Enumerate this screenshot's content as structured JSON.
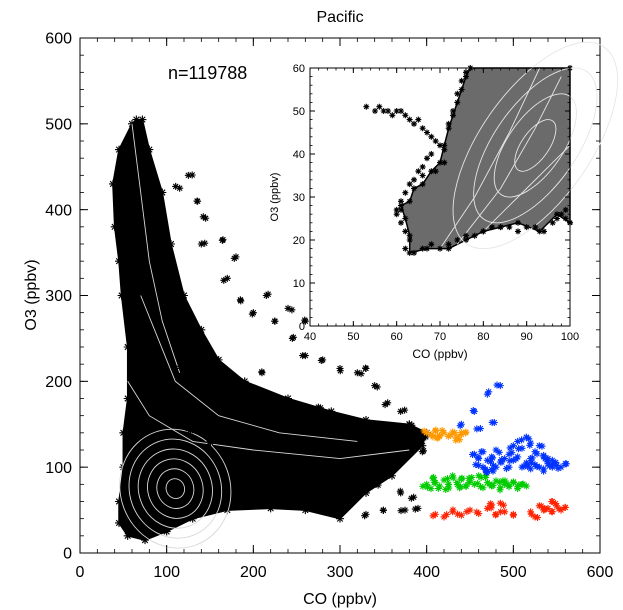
{
  "chart_data": [
    {
      "type": "scatter",
      "title": "Pacific",
      "xlabel": "CO (ppbv)",
      "ylabel": "O3 (ppbv)",
      "xlim": [
        0,
        600
      ],
      "ylim": [
        0,
        600
      ],
      "xticks": [
        0,
        100,
        200,
        300,
        400,
        500,
        600
      ],
      "yticks": [
        0,
        100,
        200,
        300,
        400,
        500,
        600
      ],
      "annotation": "n=119788",
      "grid": false,
      "legend": "none",
      "overlay": "white contour lines of point density",
      "dense_region": [
        [
          65,
          505
        ],
        [
          60,
          500
        ],
        [
          45,
          470
        ],
        [
          38,
          430
        ],
        [
          40,
          380
        ],
        [
          45,
          340
        ],
        [
          48,
          300
        ],
        [
          55,
          240
        ],
        [
          55,
          180
        ],
        [
          50,
          140
        ],
        [
          50,
          100
        ],
        [
          45,
          60
        ],
        [
          45,
          35
        ],
        [
          55,
          20
        ],
        [
          75,
          15
        ],
        [
          100,
          25
        ],
        [
          130,
          40
        ],
        [
          170,
          50
        ],
        [
          220,
          52
        ],
        [
          260,
          50
        ],
        [
          300,
          40
        ],
        [
          330,
          70
        ],
        [
          360,
          90
        ],
        [
          395,
          125
        ],
        [
          400,
          140
        ],
        [
          380,
          150
        ],
        [
          330,
          155
        ],
        [
          290,
          165
        ],
        [
          240,
          180
        ],
        [
          190,
          200
        ],
        [
          160,
          225
        ],
        [
          140,
          260
        ],
        [
          120,
          300
        ],
        [
          105,
          360
        ],
        [
          95,
          420
        ],
        [
          80,
          470
        ],
        [
          72,
          505
        ]
      ],
      "series": [
        {
          "color": "#000000",
          "values_note": "scattered outlier points",
          "points": [
            [
              115,
              425
            ],
            [
              140,
              360
            ],
            [
              170,
              320
            ],
            [
              185,
              295
            ],
            [
              200,
              280
            ],
            [
              225,
              270
            ],
            [
              245,
              250
            ],
            [
              260,
              230
            ],
            [
              280,
              225
            ],
            [
              300,
              215
            ],
            [
              320,
              210
            ],
            [
              340,
              195
            ],
            [
              355,
              175
            ],
            [
              370,
              165
            ],
            [
              380,
              150
            ],
            [
              390,
              140
            ],
            [
              395,
              135
            ],
            [
              330,
              215
            ],
            [
              395,
              118
            ],
            [
              110,
              215
            ],
            [
              125,
              145
            ],
            [
              150,
              130
            ],
            [
              200,
              115
            ],
            [
              250,
              85
            ],
            [
              300,
              60
            ],
            [
              330,
              45
            ],
            [
              350,
              50
            ],
            [
              375,
              50
            ],
            [
              390,
              52
            ],
            [
              260,
              270
            ],
            [
              240,
              285
            ],
            [
              215,
              300
            ],
            [
              180,
              345
            ],
            [
              165,
              365
            ],
            [
              145,
              390
            ],
            [
              135,
              410
            ],
            [
              125,
              440
            ],
            [
              150,
              180
            ],
            [
              210,
              210
            ],
            [
              275,
              170
            ],
            [
              310,
              95
            ],
            [
              340,
              80
            ],
            [
              370,
              70
            ],
            [
              385,
              65
            ]
          ]
        },
        {
          "color": "#ff9900",
          "points": [
            [
              400,
              140
            ],
            [
              405,
              138
            ],
            [
              410,
              142
            ],
            [
              415,
              137
            ],
            [
              420,
              140
            ],
            [
              425,
              136
            ],
            [
              430,
              141
            ],
            [
              435,
              135
            ],
            [
              440,
              138
            ],
            [
              445,
              140
            ],
            [
              438,
              132
            ],
            [
              412,
              134
            ]
          ]
        },
        {
          "color": "#00cc00",
          "points": [
            [
              400,
              80
            ],
            [
              405,
              75
            ],
            [
              410,
              82
            ],
            [
              415,
              78
            ],
            [
              420,
              85
            ],
            [
              425,
              80
            ],
            [
              430,
              90
            ],
            [
              435,
              82
            ],
            [
              440,
              86
            ],
            [
              445,
              78
            ],
            [
              450,
              84
            ],
            [
              455,
              80
            ],
            [
              460,
              90
            ],
            [
              465,
              76
            ],
            [
              470,
              82
            ],
            [
              475,
              78
            ],
            [
              480,
              84
            ],
            [
              485,
              76
            ],
            [
              490,
              80
            ],
            [
              495,
              78
            ],
            [
              500,
              82
            ],
            [
              505,
              77
            ],
            [
              510,
              80
            ],
            [
              515,
              78
            ],
            [
              408,
              88
            ],
            [
              422,
              74
            ],
            [
              438,
              76
            ],
            [
              452,
              88
            ],
            [
              468,
              88
            ],
            [
              488,
              84
            ]
          ]
        },
        {
          "color": "#0033ff",
          "points": [
            [
              455,
              115
            ],
            [
              460,
              110
            ],
            [
              465,
              118
            ],
            [
              470,
              108
            ],
            [
              475,
              112
            ],
            [
              480,
              120
            ],
            [
              485,
              106
            ],
            [
              490,
              110
            ],
            [
              495,
              115
            ],
            [
              500,
              108
            ],
            [
              505,
              112
            ],
            [
              510,
              100
            ],
            [
              515,
              105
            ],
            [
              520,
              98
            ],
            [
              525,
              103
            ],
            [
              530,
              100
            ],
            [
              535,
              98
            ],
            [
              540,
              104
            ],
            [
              545,
              100
            ],
            [
              550,
              102
            ],
            [
              555,
              100
            ],
            [
              560,
              104
            ],
            [
              465,
              100
            ],
            [
              480,
              100
            ],
            [
              495,
              100
            ],
            [
              500,
              125
            ],
            [
              505,
              130
            ],
            [
              510,
              122
            ],
            [
              515,
              135
            ],
            [
              520,
              128
            ],
            [
              525,
              118
            ],
            [
              530,
              125
            ],
            [
              535,
              112
            ],
            [
              540,
              110
            ],
            [
              470,
              95
            ],
            [
              520,
              110
            ],
            [
              545,
              108
            ],
            [
              460,
              102
            ],
            [
              475,
              97
            ],
            [
              440,
              150
            ],
            [
              455,
              165
            ],
            [
              470,
              185
            ],
            [
              485,
              195
            ],
            [
              462,
              145
            ],
            [
              478,
              152
            ]
          ]
        },
        {
          "color": "#ff2200",
          "points": [
            [
              410,
              45
            ],
            [
              420,
              42
            ],
            [
              430,
              48
            ],
            [
              440,
              44
            ],
            [
              450,
              50
            ],
            [
              460,
              46
            ],
            [
              470,
              52
            ],
            [
              480,
              45
            ],
            [
              490,
              48
            ],
            [
              500,
              44
            ],
            [
              520,
              48
            ],
            [
              530,
              55
            ],
            [
              535,
              50
            ],
            [
              540,
              52
            ],
            [
              545,
              48
            ],
            [
              550,
              55
            ],
            [
              555,
              50
            ],
            [
              560,
              53
            ],
            [
              475,
              56
            ],
            [
              485,
              58
            ],
            [
              525,
              42
            ],
            [
              545,
              60
            ]
          ]
        }
      ]
    },
    {
      "type": "scatter",
      "xlabel": "CO (ppbv)",
      "ylabel": "O3 (ppbv)",
      "xlim": [
        40,
        100
      ],
      "ylim": [
        0,
        60
      ],
      "xticks": [
        40,
        50,
        60,
        70,
        80,
        90,
        100
      ],
      "yticks": [
        0,
        10,
        20,
        30,
        40,
        50,
        60
      ],
      "grid": false,
      "legend": "none",
      "overlay": "light contour lines of point density",
      "dense_region": [
        [
          77,
          60
        ],
        [
          100,
          60
        ],
        [
          100,
          24
        ],
        [
          97,
          26
        ],
        [
          93,
          22
        ],
        [
          88,
          24
        ],
        [
          84,
          23
        ],
        [
          80,
          22
        ],
        [
          76,
          20
        ],
        [
          72,
          18
        ],
        [
          67,
          18
        ],
        [
          63,
          17
        ],
        [
          63,
          21
        ],
        [
          62,
          25
        ],
        [
          61,
          28
        ],
        [
          63,
          29
        ],
        [
          64,
          32
        ],
        [
          66,
          33
        ],
        [
          68,
          36
        ],
        [
          70,
          38
        ],
        [
          71,
          42
        ],
        [
          72,
          46
        ],
        [
          73,
          49
        ],
        [
          74,
          52
        ],
        [
          75,
          55
        ],
        [
          76,
          58
        ]
      ],
      "series": [
        {
          "color": "#000000",
          "points": [
            [
              53,
              51
            ],
            [
              55,
              50
            ],
            [
              56,
              51
            ],
            [
              57,
              50
            ],
            [
              58,
              50
            ],
            [
              59,
              49
            ],
            [
              60,
              50
            ],
            [
              61,
              50
            ],
            [
              62,
              49
            ],
            [
              63,
              48
            ],
            [
              64,
              47
            ],
            [
              65,
              48
            ],
            [
              66,
              46
            ],
            [
              67,
              45
            ],
            [
              68,
              44
            ],
            [
              69,
              43
            ],
            [
              70,
              42
            ],
            [
              71,
              41
            ],
            [
              68,
              40
            ],
            [
              67,
              39
            ],
            [
              66,
              37
            ],
            [
              65,
              36
            ],
            [
              64,
              34
            ],
            [
              63,
              33
            ],
            [
              62,
              31
            ],
            [
              61,
              29
            ],
            [
              61,
              27
            ],
            [
              60,
              26
            ],
            [
              61,
              24
            ],
            [
              62,
              22
            ],
            [
              63,
              20
            ],
            [
              62,
              18
            ],
            [
              64,
              17
            ],
            [
              66,
              18
            ],
            [
              68,
              19
            ],
            [
              70,
              18
            ],
            [
              72,
              19
            ],
            [
              74,
              20
            ],
            [
              76,
              21
            ],
            [
              78,
              21
            ],
            [
              80,
              22
            ],
            [
              82,
              23
            ],
            [
              84,
              23
            ],
            [
              86,
              23
            ],
            [
              88,
              22
            ],
            [
              90,
              23
            ],
            [
              92,
              23
            ],
            [
              94,
              22
            ],
            [
              96,
              24
            ],
            [
              97,
              25
            ],
            [
              98,
              26
            ],
            [
              99,
              25
            ],
            [
              100,
              24
            ],
            [
              72,
              47
            ],
            [
              73,
              50
            ],
            [
              74,
              54
            ],
            [
              75,
              57
            ],
            [
              76,
              59
            ],
            [
              66,
              35
            ],
            [
              71,
              38
            ],
            [
              69,
              36
            ],
            [
              60,
              27
            ],
            [
              99,
              27
            ]
          ]
        }
      ]
    }
  ]
}
